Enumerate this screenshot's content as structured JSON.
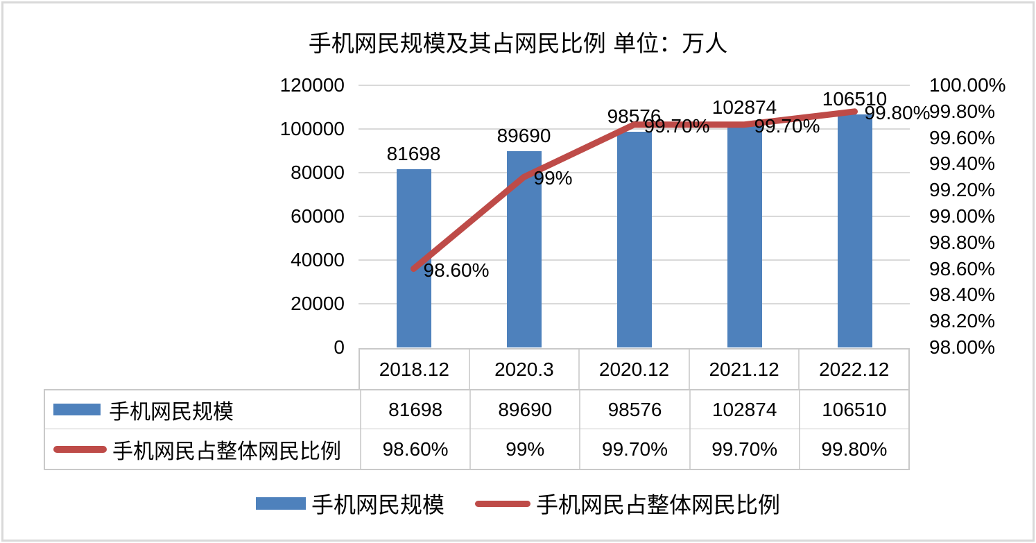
{
  "title": "手机网民规模及其占网民比例 单位：万人",
  "chart_data": {
    "type": "combo",
    "categories": [
      "2018.12",
      "2020.3",
      "2020.12",
      "2021.12",
      "2022.12"
    ],
    "series": [
      {
        "name": "手机网民规模",
        "type": "bar",
        "axis": "left",
        "color": "#4e81bc",
        "values": [
          81698,
          89690,
          98576,
          102874,
          106510
        ],
        "labels": [
          "81698",
          "89690",
          "98576",
          "102874",
          "106510"
        ]
      },
      {
        "name": "手机网民占整体网民比例",
        "type": "line",
        "axis": "right",
        "color": "#be4b48",
        "values_display": [
          "98.60%",
          "99%",
          "99.70%",
          "99.70%",
          "99.80%"
        ],
        "values_plotted": [
          98.6,
          99.3,
          99.7,
          99.7,
          99.8
        ]
      }
    ],
    "left_axis": {
      "min": 0,
      "max": 120000,
      "step": 20000,
      "ticks": [
        "120000",
        "100000",
        "80000",
        "60000",
        "40000",
        "20000",
        "0"
      ]
    },
    "right_axis": {
      "min": 98,
      "max": 100,
      "step": 0.2,
      "ticks": [
        "100.00%",
        "99.80%",
        "99.60%",
        "99.40%",
        "99.20%",
        "99.00%",
        "98.80%",
        "98.60%",
        "98.40%",
        "98.20%",
        "98.00%"
      ]
    },
    "grid": true,
    "legend_position": "bottom",
    "data_table": {
      "rows": [
        {
          "swatch": "bar",
          "name": "手机网民规模",
          "values": [
            "81698",
            "89690",
            "98576",
            "102874",
            "106510"
          ]
        },
        {
          "swatch": "line",
          "name": "手机网民占整体网民比例",
          "values": [
            "98.60%",
            "99%",
            "99.70%",
            "99.70%",
            "99.80%"
          ]
        }
      ]
    }
  },
  "legend": {
    "items": [
      {
        "label": "手机网民规模",
        "swatch": "bar",
        "color": "#4e81bc"
      },
      {
        "label": "手机网民占整体网民比例",
        "swatch": "line",
        "color": "#be4b48"
      }
    ]
  },
  "colors": {
    "bar": "#4e81bc",
    "line": "#be4b48",
    "gridline": "#d9d9d9",
    "table_border": "#c9c9c9",
    "text": "#000000"
  }
}
